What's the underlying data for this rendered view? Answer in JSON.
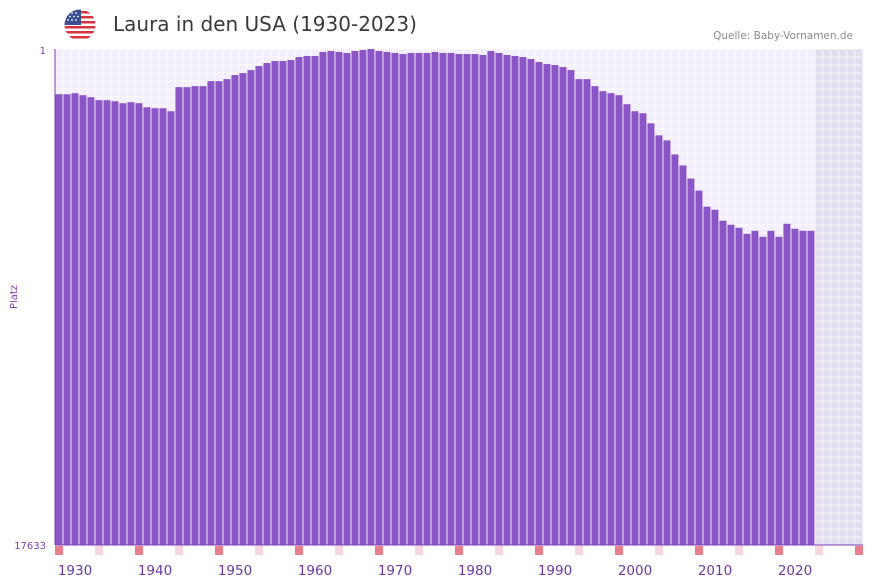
{
  "header": {
    "title": "Laura in den USA (1930-2023)",
    "source": "Quelle: Baby-Vornamen.de",
    "flag_icon": "us-flag-icon"
  },
  "colors": {
    "bar": "#8c55c7",
    "grid_bg": "#f3eefb",
    "future_bg": "#e3dff0",
    "axis": "#7a3fb0",
    "marker_strong": "#e87d8c",
    "marker_light": "#f8d6de"
  },
  "chart_data": {
    "type": "bar",
    "title": "Laura in den USA (1930-2023)",
    "xlabel": "",
    "ylabel": "Platz",
    "y_inverted": true,
    "ylim": [
      1,
      17633
    ],
    "y_ticks": [
      "1",
      "17633"
    ],
    "x_range": [
      1928,
      2028
    ],
    "x_ticks": [
      1930,
      1940,
      1950,
      1960,
      1970,
      1980,
      1990,
      2000,
      2010,
      2020
    ],
    "series": [
      {
        "name": "Platz",
        "x": [
          1928,
          1929,
          1930,
          1931,
          1932,
          1933,
          1934,
          1935,
          1936,
          1937,
          1938,
          1939,
          1940,
          1941,
          1942,
          1943,
          1944,
          1945,
          1946,
          1947,
          1948,
          1949,
          1950,
          1951,
          1952,
          1953,
          1954,
          1955,
          1956,
          1957,
          1958,
          1959,
          1960,
          1961,
          1962,
          1963,
          1964,
          1965,
          1966,
          1967,
          1968,
          1969,
          1970,
          1971,
          1972,
          1973,
          1974,
          1975,
          1976,
          1977,
          1978,
          1979,
          1980,
          1981,
          1982,
          1983,
          1984,
          1985,
          1986,
          1987,
          1988,
          1989,
          1990,
          1991,
          1992,
          1993,
          1994,
          1995,
          1996,
          1997,
          1998,
          1999,
          2000,
          2001,
          2002,
          2003,
          2004,
          2005,
          2006,
          2007,
          2008,
          2009,
          2010,
          2011,
          2012,
          2013,
          2014,
          2015,
          2016,
          2017,
          2018,
          2019,
          2020,
          2021,
          2022
        ],
        "values": [
          1608,
          1608,
          1573,
          1643,
          1714,
          1821,
          1821,
          1857,
          1928,
          1893,
          1928,
          2071,
          2106,
          2106,
          2213,
          1357,
          1357,
          1321,
          1321,
          1143,
          1143,
          1071,
          928,
          857,
          750,
          607,
          500,
          429,
          429,
          393,
          286,
          250,
          250,
          107,
          72,
          107,
          143,
          72,
          36,
          1,
          72,
          107,
          143,
          179,
          143,
          143,
          143,
          107,
          143,
          143,
          179,
          179,
          179,
          214,
          72,
          143,
          214,
          250,
          286,
          357,
          464,
          536,
          571,
          643,
          750,
          1071,
          1071,
          1321,
          1500,
          1571,
          1643,
          1964,
          2213,
          2285,
          2643,
          3071,
          3250,
          3750,
          4142,
          4606,
          5035,
          5606,
          5713,
          6106,
          6249,
          6356,
          6570,
          6463,
          6677,
          6463,
          6677,
          6213,
          6392,
          6463,
          6463
        ]
      }
    ],
    "markers": {
      "strong": [
        1928,
        1938,
        1948,
        1958,
        1968,
        1978,
        1988,
        1998,
        2008,
        2018,
        2028
      ],
      "light": [
        1933,
        1943,
        1953,
        1963,
        1973,
        1983,
        1993,
        2003,
        2013,
        2023
      ]
    }
  }
}
